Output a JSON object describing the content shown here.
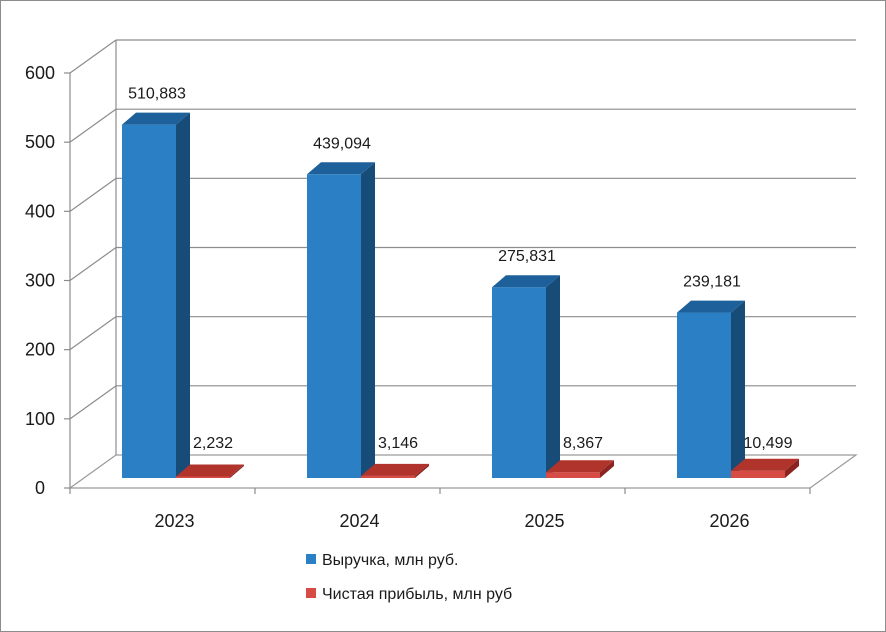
{
  "chart_data": {
    "type": "bar",
    "categories": [
      "2023",
      "2024",
      "2025",
      "2026"
    ],
    "series": [
      {
        "name": "Выручка, млн  руб.",
        "values": [
          510.883,
          439.094,
          275.831,
          239.181
        ],
        "labels": [
          "510,883",
          "439,094",
          "275,831",
          "239,181"
        ],
        "color": "#2b80c5",
        "side_color": "#174b78",
        "top_color": "#1d609a"
      },
      {
        "name": "Чистая прибыль, млн руб",
        "values": [
          2.232,
          3.146,
          8.367,
          10.499
        ],
        "labels": [
          "2,232",
          "3,146",
          "8,367",
          "10,499"
        ],
        "color": "#d64b44",
        "side_color": "#8b2420",
        "top_color": "#b0332c"
      }
    ],
    "yticks": [
      "0",
      "100",
      "200",
      "300",
      "400",
      "500",
      "600"
    ],
    "ylim": [
      0,
      600
    ],
    "grid": true,
    "style": "3d-clustered-column",
    "legend_position": "bottom"
  }
}
